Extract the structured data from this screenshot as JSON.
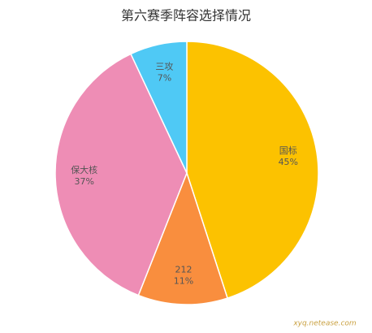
{
  "chart_data": {
    "type": "pie",
    "title": "第六赛季阵容选择情况",
    "categories": [
      "国标",
      "212",
      "保大核",
      "三攻"
    ],
    "values": [
      45,
      11,
      37,
      7
    ],
    "value_labels": [
      "45%",
      "11%",
      "37%",
      "7%"
    ],
    "colors": [
      "#fcc200",
      "#f98e3e",
      "#ee8db5",
      "#4fc9f5"
    ]
  },
  "watermark": "xyq.netease.com"
}
